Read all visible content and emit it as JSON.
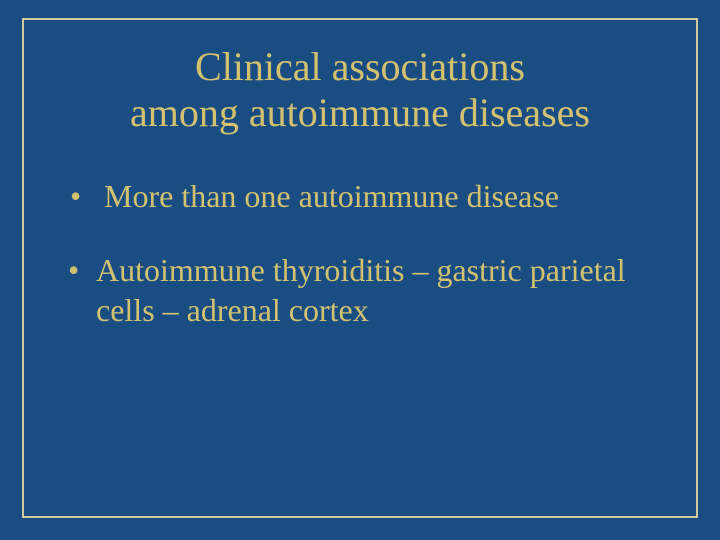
{
  "slide": {
    "background_color": "#1a4e82",
    "border_color": "#d4c89a",
    "text_color": "#d4c170",
    "title_line1": "Clinical associations",
    "title_line2": "among autoimmune diseases",
    "title_fontsize": 40,
    "bullet_fontsize": 32,
    "bullets": [
      "More than one autoimmune disease",
      "Autoimmune thyroiditis – gastric parietal cells – adrenal cortex"
    ]
  }
}
